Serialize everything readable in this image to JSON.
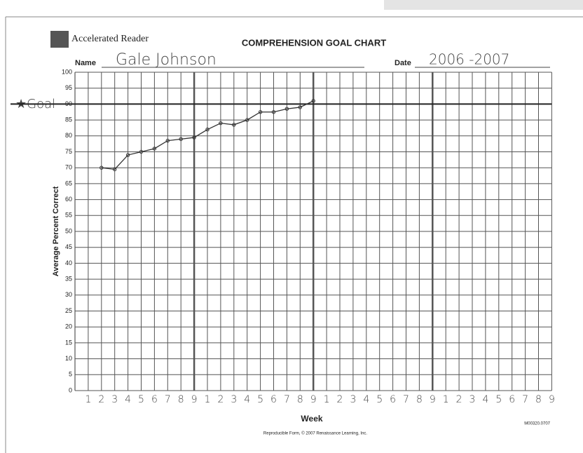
{
  "chart_data": {
    "type": "line",
    "logo": "Accelerated Reader",
    "title": "COMPREHENSION GOAL CHART",
    "name_label": "Name",
    "name": "Gale Johnson",
    "date_label": "Date",
    "date": "2006 -2007",
    "annotation": "★Goal",
    "goal": 90,
    "y_label": "Average Percent Correct",
    "x_label": "Week",
    "footer": "Reproducible Form, © 2007 Renaissance Learning, Inc.",
    "form_code": "M00320.0707",
    "categories": [
      "1",
      "2",
      "3",
      "4",
      "5",
      "6",
      "7",
      "8",
      "9",
      "1",
      "2",
      "3",
      "4",
      "5",
      "6",
      "7",
      "8",
      "9",
      "1",
      "2",
      "3",
      "4",
      "5",
      "6",
      "7",
      "8",
      "9",
      "1",
      "2",
      "3",
      "4",
      "5",
      "6",
      "7",
      "8",
      "9"
    ],
    "series": [
      {
        "name": "Gale Johnson",
        "color": "#333333",
        "values": [
          null,
          70,
          69.5,
          74,
          75,
          76,
          78.5,
          79,
          79.5,
          82,
          84,
          83.5,
          85,
          87.5,
          87.5,
          88.5,
          89,
          91,
          null,
          null,
          null,
          null,
          null,
          null,
          null,
          null,
          null,
          null,
          null,
          null,
          null,
          null,
          null,
          null,
          null,
          null
        ]
      }
    ],
    "ylim": [
      0,
      100
    ],
    "yticks": [
      0,
      5,
      10,
      15,
      20,
      25,
      30,
      35,
      40,
      45,
      50,
      55,
      60,
      65,
      70,
      75,
      80,
      85,
      90,
      95,
      100
    ],
    "grid": true
  }
}
